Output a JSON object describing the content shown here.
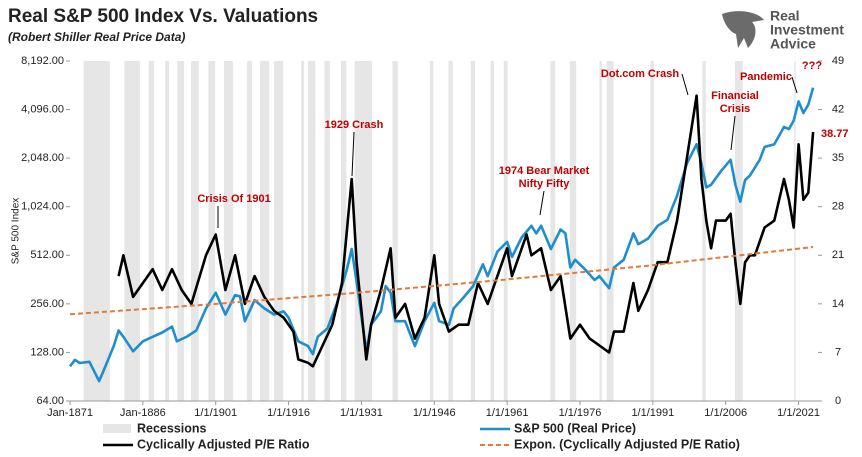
{
  "chart_data": {
    "type": "line",
    "title": "Real S&P 500 Index Vs. Valuations",
    "subtitle": "(Robert Shiller Real Price Data)",
    "y_label": "S&P 500 Index",
    "logo": [
      "Real",
      "Investment",
      "Advice"
    ],
    "xlim": [
      1871,
      2025
    ],
    "xticks": [
      {
        "value": 1871,
        "label": "Jan-1871"
      },
      {
        "value": 1886,
        "label": "Jan-1886"
      },
      {
        "value": 1901,
        "label": "1/1/1901"
      },
      {
        "value": 1916,
        "label": "1/1/1916"
      },
      {
        "value": 1931,
        "label": "1/1/1931"
      },
      {
        "value": 1946,
        "label": "1/1/1946"
      },
      {
        "value": 1961,
        "label": "1/1/1961"
      },
      {
        "value": 1976,
        "label": "1/1/1976"
      },
      {
        "value": 1991,
        "label": "1/1/1991"
      },
      {
        "value": 2006,
        "label": "1/1/2006"
      },
      {
        "value": 2021,
        "label": "1/1/2021"
      }
    ],
    "ylim": [
      64,
      8192
    ],
    "yscale": "log",
    "yticks": [
      {
        "value": 64,
        "label": "64.00"
      },
      {
        "value": 128,
        "label": "128.00"
      },
      {
        "value": 256,
        "label": "256.00"
      },
      {
        "value": 512,
        "label": "512.00"
      },
      {
        "value": 1024,
        "label": "1,024.00"
      },
      {
        "value": 2048,
        "label": "2,048.00"
      },
      {
        "value": 4096,
        "label": "4,096.00"
      },
      {
        "value": 8192,
        "label": "8,192.00"
      }
    ],
    "y2lim": [
      0,
      49
    ],
    "y2ticks": [
      0,
      7,
      14,
      21,
      28,
      35,
      42,
      49
    ],
    "recessions": {
      "name": "Recessions",
      "color": "#e6e6e6",
      "ranges": [
        [
          1873.8,
          1879.2
        ],
        [
          1882.2,
          1885.4
        ],
        [
          1887.2,
          1888.3
        ],
        [
          1890.6,
          1891.4
        ],
        [
          1893.1,
          1894.5
        ],
        [
          1895.9,
          1897.5
        ],
        [
          1899.5,
          1900.9
        ],
        [
          1902.7,
          1904.6
        ],
        [
          1907.4,
          1908.5
        ],
        [
          1910.1,
          1912.0
        ],
        [
          1913.0,
          1914.9
        ],
        [
          1918.6,
          1919.2
        ],
        [
          1920.0,
          1921.5
        ],
        [
          1923.4,
          1924.5
        ],
        [
          1926.8,
          1927.9
        ],
        [
          1929.6,
          1933.2
        ],
        [
          1937.4,
          1938.5
        ],
        [
          1945.1,
          1945.8
        ],
        [
          1948.9,
          1949.8
        ],
        [
          1953.5,
          1954.4
        ],
        [
          1957.6,
          1958.3
        ],
        [
          1960.3,
          1961.1
        ],
        [
          1969.9,
          1970.9
        ],
        [
          1973.9,
          1975.2
        ],
        [
          1980.0,
          1980.5
        ],
        [
          1981.5,
          1982.9
        ],
        [
          1990.5,
          1991.2
        ],
        [
          2001.2,
          2001.9
        ],
        [
          2007.9,
          2009.5
        ],
        [
          2020.1,
          2020.4
        ]
      ]
    },
    "series": [
      {
        "name": "S&P 500 (Real Price)",
        "color": "#1e8fcc",
        "axis": "y",
        "x": [
          1871,
          1872,
          1873,
          1875,
          1877,
          1878,
          1880,
          1881,
          1882,
          1884,
          1886,
          1888,
          1890,
          1892,
          1893,
          1895,
          1897,
          1899,
          1901,
          1903,
          1905,
          1906,
          1907,
          1909,
          1911,
          1913,
          1915,
          1916,
          1918,
          1920,
          1921,
          1922,
          1924,
          1926,
          1928,
          1929,
          1930,
          1932,
          1933,
          1935,
          1936,
          1937,
          1938,
          1940,
          1942,
          1944,
          1946,
          1947,
          1949,
          1950,
          1952,
          1954,
          1956,
          1957,
          1959,
          1961,
          1962,
          1964,
          1966,
          1967,
          1968,
          1970,
          1972,
          1973,
          1974,
          1975,
          1977,
          1979,
          1980,
          1982,
          1983,
          1985,
          1987,
          1988,
          1990,
          1992,
          1994,
          1996,
          1998,
          2000,
          2001,
          2002,
          2003,
          2005,
          2007,
          2008,
          2009,
          2010,
          2011,
          2013,
          2014,
          2016,
          2018,
          2019,
          2020,
          2021,
          2022,
          2023,
          2024
        ],
        "values": [
          105,
          115,
          110,
          112,
          85,
          100,
          140,
          175,
          160,
          130,
          150,
          160,
          170,
          185,
          150,
          160,
          175,
          240,
          300,
          220,
          290,
          285,
          200,
          270,
          240,
          220,
          230,
          210,
          150,
          140,
          125,
          160,
          180,
          260,
          420,
          560,
          350,
          130,
          190,
          230,
          330,
          300,
          200,
          200,
          140,
          200,
          260,
          200,
          190,
          240,
          280,
          330,
          450,
          380,
          540,
          620,
          500,
          660,
          780,
          700,
          780,
          560,
          740,
          700,
          430,
          480,
          420,
          360,
          380,
          320,
          430,
          480,
          700,
          600,
          650,
          780,
          850,
          1200,
          1900,
          2500,
          1900,
          1350,
          1400,
          1700,
          2000,
          1400,
          1100,
          1500,
          1600,
          2000,
          2400,
          2500,
          3200,
          3100,
          3500,
          4600,
          3900,
          4400,
          5600
        ]
      },
      {
        "name": "Cyclically Adjusted P/E Ratio",
        "color": "#000000",
        "axis": "y2",
        "x": [
          1881,
          1882,
          1884,
          1886,
          1888,
          1890,
          1892,
          1894,
          1896,
          1899,
          1901,
          1903,
          1905,
          1907,
          1909,
          1911,
          1913,
          1915,
          1917,
          1918,
          1920,
          1921,
          1923,
          1925,
          1927,
          1929,
          1930,
          1932,
          1933,
          1935,
          1937,
          1938,
          1940,
          1942,
          1944,
          1946,
          1947,
          1949,
          1951,
          1953,
          1955,
          1957,
          1959,
          1961,
          1962,
          1965,
          1966,
          1968,
          1970,
          1972,
          1974,
          1976,
          1978,
          1980,
          1982,
          1983,
          1985,
          1987,
          1988,
          1990,
          1992,
          1994,
          1996,
          1998,
          2000,
          2001,
          2002,
          2003,
          2004,
          2006,
          2007,
          2008,
          2009,
          2010,
          2011,
          2012,
          2014,
          2016,
          2018,
          2019,
          2020,
          2021,
          2022,
          2023,
          2024
        ],
        "values": [
          18,
          21,
          15,
          17,
          19,
          16,
          19,
          16,
          14,
          21,
          24,
          16,
          21,
          14,
          18,
          15,
          13,
          12,
          10,
          6,
          5.5,
          5,
          8,
          11,
          17,
          32,
          20,
          6,
          11,
          16,
          22,
          12,
          14,
          9,
          12,
          21,
          14,
          10,
          11,
          11,
          17,
          14,
          18,
          22,
          18,
          24,
          21,
          22,
          16,
          18,
          9,
          11,
          9,
          8,
          7,
          10,
          10,
          17,
          13,
          16,
          20,
          20,
          26,
          35,
          44,
          32,
          26,
          22,
          26,
          26,
          27,
          20,
          14,
          20,
          21,
          21,
          25,
          26,
          32,
          29,
          25,
          37,
          29,
          30,
          38.77
        ]
      },
      {
        "name": "Expon. (Cyclically Adjusted P/E Ratio)",
        "color": "#e07b39",
        "axis": "y2",
        "dash": true,
        "x": [
          1871,
          1900,
          1930,
          1960,
          1990,
          2024
        ],
        "values": [
          12.5,
          13.94,
          15.6,
          17.45,
          19.5,
          22.2
        ]
      }
    ],
    "annotations": [
      "Crisis Of 1901",
      "1929 Crash",
      "1974 Bear Market",
      "Nifty Fifty",
      "Dot.com Crash",
      "Financial",
      "Crisis",
      "Pandemic",
      "???"
    ],
    "annotation_color": "#c00000"
  }
}
